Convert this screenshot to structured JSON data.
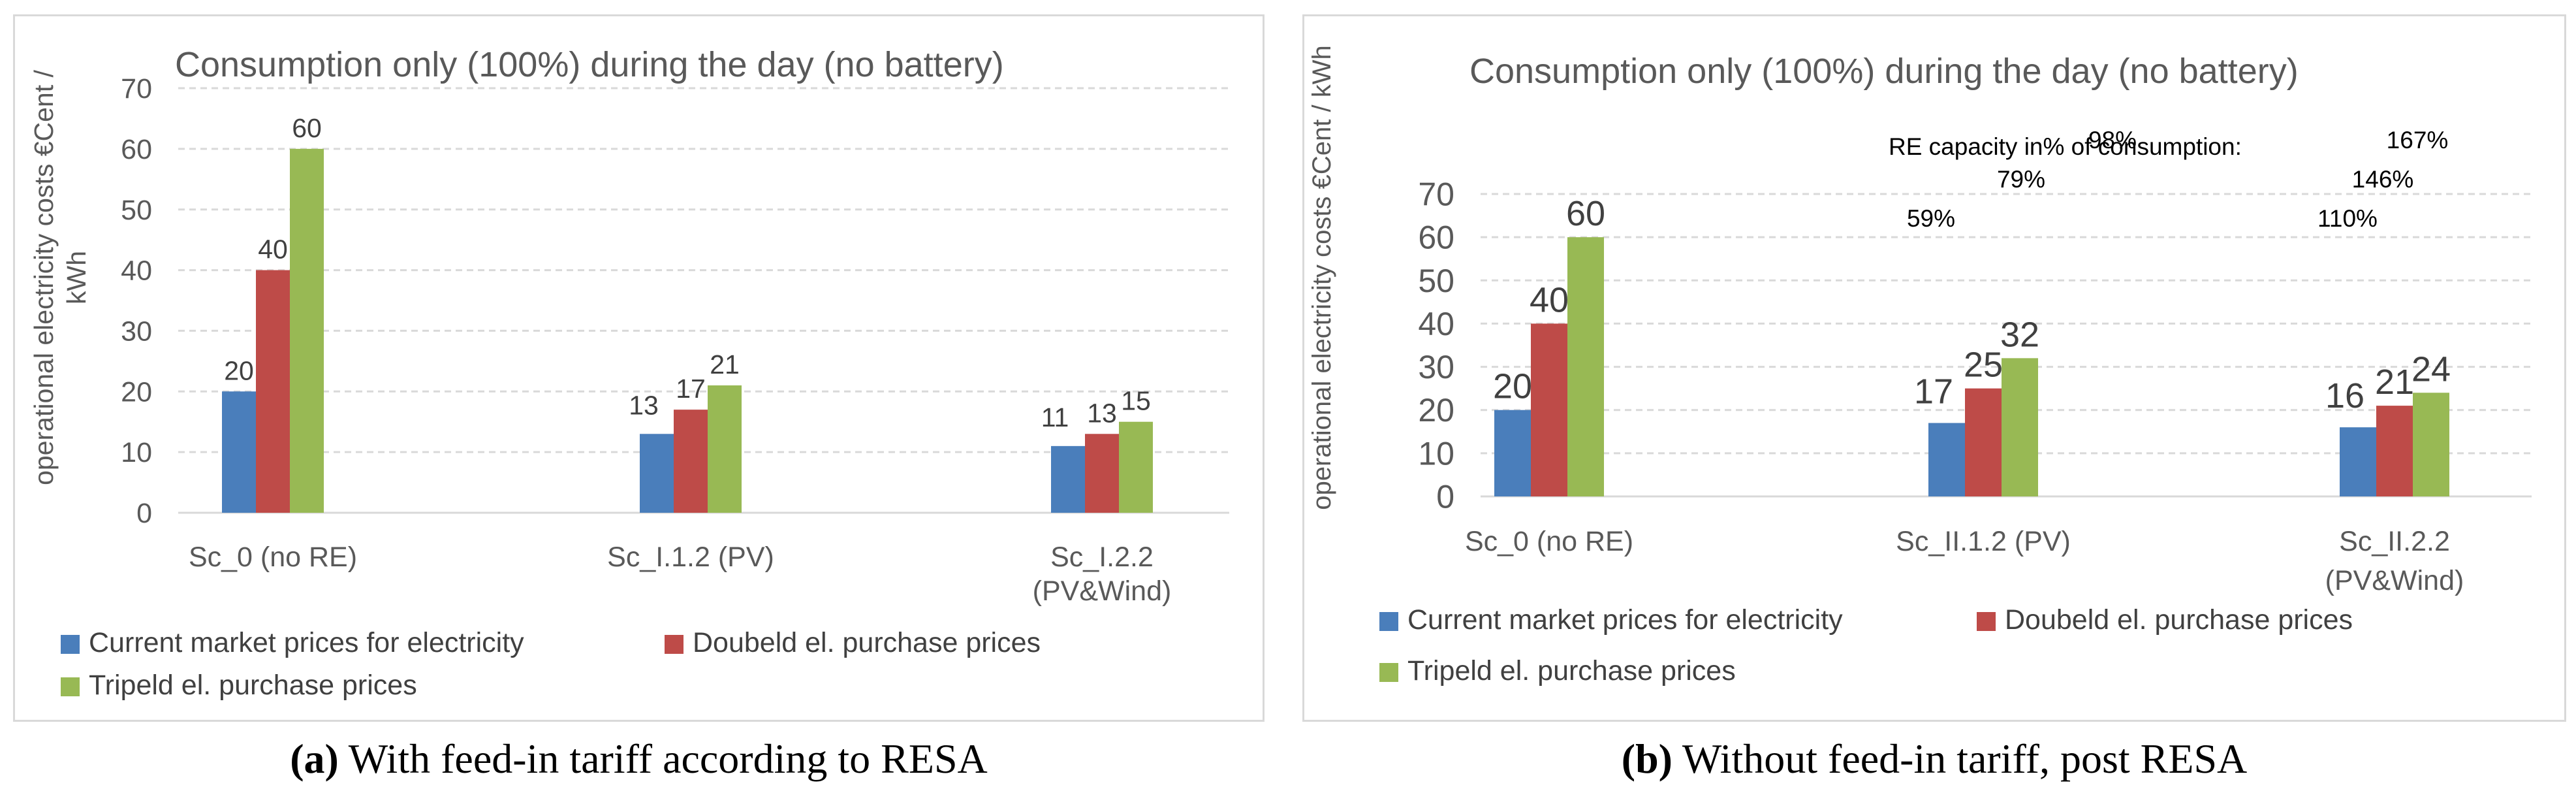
{
  "colors": {
    "series1": "#4a7ebb",
    "series2": "#be4b48",
    "series3": "#98b954",
    "grid": "#d9d9d9",
    "text": "#595959"
  },
  "chart_data": [
    {
      "type": "bar",
      "title": "Consumption only (100%) during the day (no battery)",
      "ylabel": "operational electricity costs €Cent / kWh",
      "xlabel": "",
      "ylim": [
        0,
        70
      ],
      "yticks": [
        0,
        10,
        20,
        30,
        40,
        50,
        60,
        70
      ],
      "categories": [
        "Sc_0 (no RE)",
        "Sc_I.1.2 (PV)",
        "Sc_I.2.2 (PV&Wind)"
      ],
      "series": [
        {
          "name": "Current market prices for electricity",
          "values": [
            20,
            13,
            11
          ]
        },
        {
          "name": "Doubeld el. purchase prices",
          "values": [
            40,
            17,
            13
          ]
        },
        {
          "name": "Tripeld el. purchase prices",
          "values": [
            60,
            21,
            15
          ]
        }
      ],
      "data_labels": [
        [
          "20",
          "40",
          "60"
        ],
        [
          "13",
          "17",
          "21"
        ],
        [
          "11",
          "13",
          "15"
        ]
      ],
      "legend_position": "bottom",
      "annotation_title": "",
      "annotations": []
    },
    {
      "type": "bar",
      "title": "Consumption only (100%) during the day (no battery)",
      "ylabel": "operational electricity costs €Cent / kWh",
      "xlabel": "",
      "ylim": [
        0,
        70
      ],
      "yticks": [
        0,
        10,
        20,
        30,
        40,
        50,
        60,
        70
      ],
      "categories": [
        "Sc_0 (no RE)",
        "Sc_II.1.2 (PV)",
        "Sc_II.2.2 (PV&Wind)"
      ],
      "series": [
        {
          "name": "Current market prices for electricity",
          "values": [
            20,
            17,
            16
          ]
        },
        {
          "name": "Doubeld el. purchase prices",
          "values": [
            40,
            25,
            21
          ]
        },
        {
          "name": "Tripeld el. purchase prices",
          "values": [
            60,
            32,
            24
          ]
        }
      ],
      "data_labels": [
        [
          "20",
          "40",
          "60"
        ],
        [
          "17",
          "25",
          "32"
        ],
        [
          "16",
          "21",
          "24"
        ]
      ],
      "legend_position": "bottom",
      "annotation_title": "RE capacity in% of consumption:",
      "annotations": [
        {
          "category": "Sc_II.1.2 (PV)",
          "labels": [
            "59%",
            "79%",
            "98%"
          ]
        },
        {
          "category": "Sc_II.2.2 (PV&Wind)",
          "labels": [
            "110%",
            "146%",
            "167%"
          ]
        }
      ]
    }
  ],
  "captions": [
    {
      "label": "(a)",
      "text": " With feed-in tariff according to RESA"
    },
    {
      "label": "(b)",
      "text": " Without feed-in tariff, post RESA"
    }
  ]
}
